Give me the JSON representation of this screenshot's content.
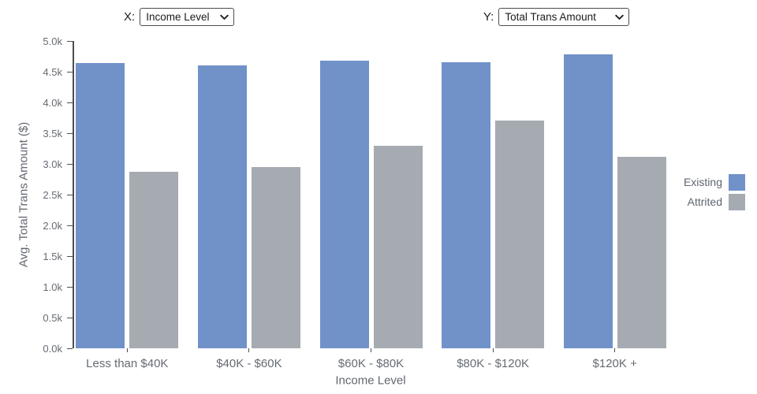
{
  "controls": {
    "x_label": "X:",
    "x_select_value": "Income Level",
    "y_label": "Y:",
    "y_select_value": "Total Trans Amount"
  },
  "chart_data": {
    "type": "bar",
    "title": "",
    "xlabel": "Income Level",
    "ylabel": "Avg. Total Trans Amount ($)",
    "categories": [
      "Less than $40K",
      "$40K - $60K",
      "$60K - $80K",
      "$80K - $120K",
      "$120K +"
    ],
    "series": [
      {
        "name": "Existing",
        "color": "#7191c9",
        "values": [
          4640,
          4600,
          4680,
          4650,
          4780
        ]
      },
      {
        "name": "Attrited",
        "color": "#a5abb1",
        "values": [
          2870,
          2950,
          3290,
          3700,
          3110
        ]
      }
    ],
    "ylim": [
      0,
      5000
    ],
    "ytick_step": 500,
    "ytick_labels": [
      "0.0k",
      "0.5k",
      "1.0k",
      "1.5k",
      "2.0k",
      "2.5k",
      "3.0k",
      "3.5k",
      "4.0k",
      "4.5k",
      "5.0k"
    ],
    "grid": false,
    "legend_position": "right"
  }
}
